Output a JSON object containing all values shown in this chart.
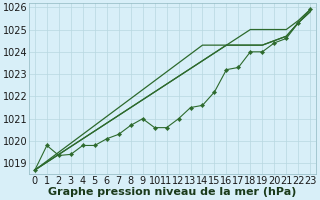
{
  "x": [
    0,
    1,
    2,
    3,
    4,
    5,
    6,
    7,
    8,
    9,
    10,
    11,
    12,
    13,
    14,
    15,
    16,
    17,
    18,
    19,
    20,
    21,
    22,
    23
  ],
  "line_straight1": [
    1018.7,
    1019.05,
    1019.4,
    1019.75,
    1020.1,
    1020.45,
    1020.8,
    1021.15,
    1021.5,
    1021.85,
    1022.2,
    1022.55,
    1022.9,
    1023.25,
    1023.6,
    1023.95,
    1024.3,
    1024.3,
    1024.3,
    1024.3,
    1024.5,
    1024.7,
    1025.3,
    1025.8
  ],
  "line_straight2": [
    1018.7,
    1019.1,
    1019.5,
    1019.9,
    1020.3,
    1020.7,
    1021.1,
    1021.5,
    1021.9,
    1022.3,
    1022.7,
    1023.1,
    1023.5,
    1023.9,
    1024.3,
    1024.3,
    1024.3,
    1024.3,
    1024.3,
    1024.3,
    1024.5,
    1024.7,
    1025.3,
    1025.8
  ],
  "line_dip": [
    1018.7,
    1019.8,
    1019.35,
    1019.4,
    1019.8,
    1019.8,
    1020.1,
    1020.3,
    1020.7,
    1021.0,
    1020.6,
    1020.6,
    1021.0,
    1021.5,
    1021.6,
    1022.2,
    1023.2,
    1023.3,
    1024.0,
    1024.0,
    1024.4,
    1024.6,
    1025.3,
    1025.9
  ],
  "line_upper": [
    1018.7,
    1019.05,
    1019.4,
    1019.75,
    1020.1,
    1020.45,
    1020.8,
    1021.15,
    1021.5,
    1021.85,
    1022.2,
    1022.55,
    1022.9,
    1023.25,
    1023.6,
    1023.95,
    1024.3,
    1024.65,
    1025.0,
    1025.0,
    1025.0,
    1025.0,
    1025.4,
    1025.9
  ],
  "bg_color": "#d8eff8",
  "grid_color": "#b8d8e0",
  "line_color": "#2d6a2d",
  "xlabel": "Graphe pression niveau de la mer (hPa)",
  "ylim": [
    1018.5,
    1026.2
  ],
  "yticks": [
    1019,
    1020,
    1021,
    1022,
    1023,
    1024,
    1025,
    1026
  ],
  "xticks": [
    0,
    1,
    2,
    3,
    4,
    5,
    6,
    7,
    8,
    9,
    10,
    11,
    12,
    13,
    14,
    15,
    16,
    17,
    18,
    19,
    20,
    21,
    22,
    23
  ],
  "font_size": 7,
  "xlabel_fontsize": 8
}
